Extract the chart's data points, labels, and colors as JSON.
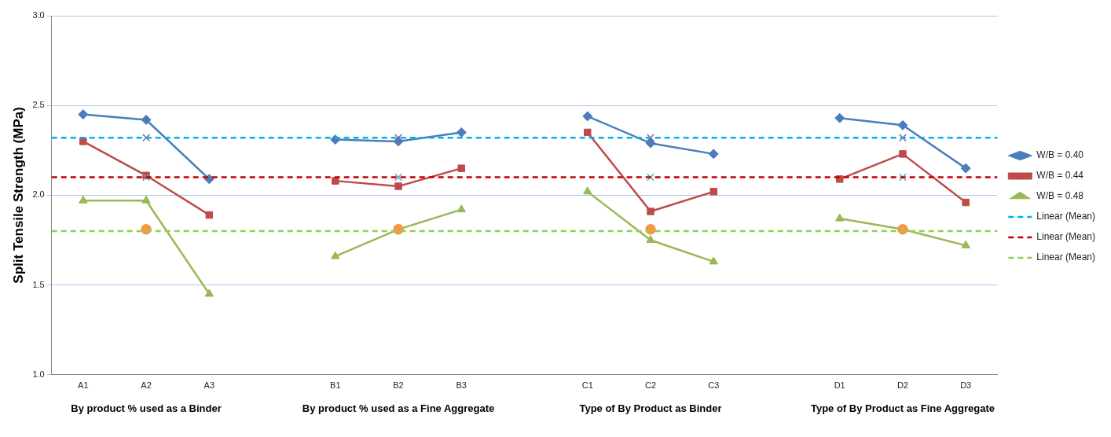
{
  "chart_data": {
    "type": "line",
    "ylabel": "Split Tensile Strength (MPa)",
    "categories": [
      "A1",
      "A2",
      "A3",
      null,
      "B1",
      "B2",
      "B3",
      null,
      "C1",
      "C2",
      "C3",
      null,
      "D1",
      "D2",
      "D3"
    ],
    "series": [
      {
        "name": "W/B = 0.40",
        "color": "#4a7ebb",
        "marker": "diamond",
        "values": [
          2.45,
          2.42,
          2.09,
          null,
          2.31,
          2.3,
          2.35,
          null,
          2.44,
          2.29,
          2.23,
          null,
          2.43,
          2.39,
          2.15
        ]
      },
      {
        "name": "W/B = 0.44",
        "color": "#be4b48",
        "marker": "square",
        "values": [
          2.3,
          2.11,
          1.89,
          null,
          2.08,
          2.05,
          2.15,
          null,
          2.35,
          1.91,
          2.02,
          null,
          2.09,
          2.23,
          1.96
        ]
      },
      {
        "name": "W/B = 0.48",
        "color": "#98b954",
        "marker": "triangle",
        "values": [
          1.97,
          1.97,
          1.45,
          null,
          1.66,
          1.81,
          1.92,
          null,
          2.02,
          1.75,
          1.63,
          null,
          1.87,
          1.81,
          1.72
        ]
      },
      {
        "type": "scatter",
        "color": "#8064a2",
        "marker": "cross",
        "x": [
          "A2",
          "B2",
          "C2",
          "D2"
        ],
        "values": [
          2.32,
          2.32,
          2.32,
          2.32
        ]
      },
      {
        "type": "scatter",
        "color": "#4bacc6",
        "marker": "cross",
        "x": [
          "A2",
          "B2",
          "C2",
          "D2"
        ],
        "values": [
          2.1,
          2.1,
          2.1,
          2.1
        ]
      },
      {
        "type": "scatter",
        "color": "#f79646",
        "marker": "circle",
        "x": [
          "A2",
          "B2",
          "C2",
          "D2"
        ],
        "values": [
          1.81,
          1.81,
          1.81,
          1.81
        ]
      }
    ],
    "ref_lines": [
      {
        "axis": "y",
        "value": 2.32,
        "label": "Linear (Mean)",
        "color": "#00b0f0",
        "line_style": "dashed"
      },
      {
        "axis": "y",
        "value": 2.1,
        "label": "Linear (Mean)",
        "color": "#c00000",
        "line_style": "dashed"
      },
      {
        "axis": "y",
        "value": 1.8,
        "label": "Linear (Mean)",
        "color": "#92d050",
        "line_style": "dashed"
      }
    ],
    "annotations": [
      "By product % used as a Binder",
      "By product % used as a Fine Aggregate",
      "Type of By Product as Binder",
      "Type of By Product as Fine Aggregate"
    ],
    "ylim": [
      1.0,
      3.0
    ],
    "yticks": [
      {
        "value": 1.0,
        "label": "1.0"
      },
      {
        "value": 1.5,
        "label": "1.5"
      },
      {
        "value": 2.0,
        "label": "2.0"
      },
      {
        "value": 2.5,
        "label": "2.5"
      },
      {
        "value": 3.0,
        "label": "3.0"
      }
    ],
    "grid": "y",
    "legend": "right"
  }
}
